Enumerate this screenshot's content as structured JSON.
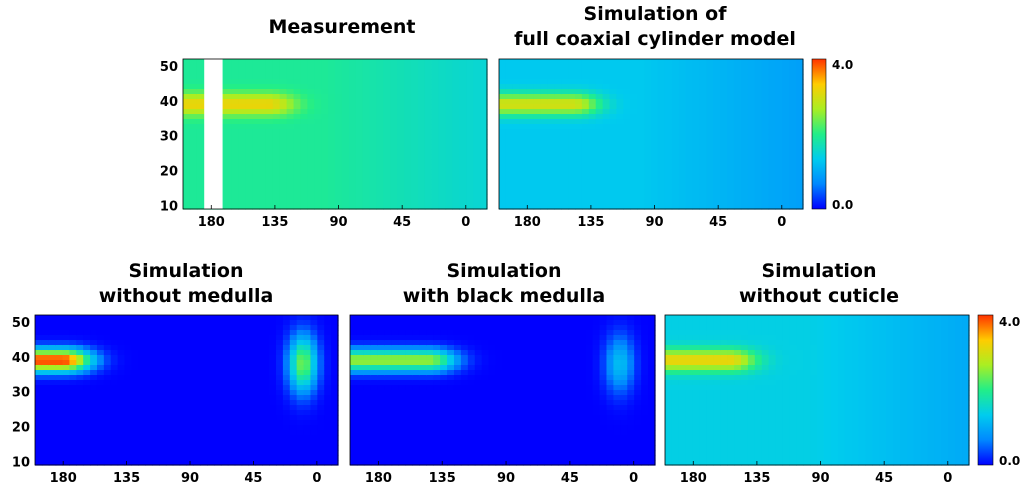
{
  "chart_data": {
    "type": "heatmap",
    "x_ticks": [
      "180",
      "135",
      "90",
      "45",
      "0"
    ],
    "x_tick_values": [
      180,
      135,
      90,
      45,
      0
    ],
    "y_ticks": [
      "10",
      "20",
      "30",
      "40",
      "50"
    ],
    "y_tick_values": [
      10,
      20,
      30,
      40,
      50
    ],
    "xlim": [
      200,
      -15
    ],
    "ylim": [
      9,
      52
    ],
    "colorscale": [
      "#0000ff",
      "#0088ff",
      "#00ccee",
      "#22ee88",
      "#aaee22",
      "#ffcc00",
      "#ff3300"
    ],
    "colorbar": {
      "max_label": "4.0",
      "min_label": "0.0",
      "range": [
        0,
        4
      ]
    },
    "panels": [
      {
        "title_lines": [
          "Measurement"
        ],
        "background_level": 1.9,
        "gap_x": [
          185,
          172
        ],
        "band_level": 3.2,
        "band_peak_x": 140,
        "tail_level": 1.7
      },
      {
        "title_lines": [
          "Simulation of",
          "full coaxial cylinder model"
        ],
        "background_level": 1.3,
        "band_level": 3.0,
        "band_peak_x": 148,
        "tail_level": 1.1
      },
      {
        "title_lines": [
          "Simulation",
          "without medulla"
        ],
        "background_level": 0.0,
        "band_level": 4.0,
        "band_peak_x": 180,
        "tail_level": 2.4
      },
      {
        "title_lines": [
          "Simulation",
          "with black medulla"
        ],
        "background_level": 0.0,
        "band_level": 2.6,
        "band_peak_x": 145,
        "tail_level": 1.2
      },
      {
        "title_lines": [
          "Simulation",
          "without cuticle"
        ],
        "background_level": 1.4,
        "band_level": 3.2,
        "band_peak_x": 155,
        "tail_level": 1.1
      }
    ]
  }
}
